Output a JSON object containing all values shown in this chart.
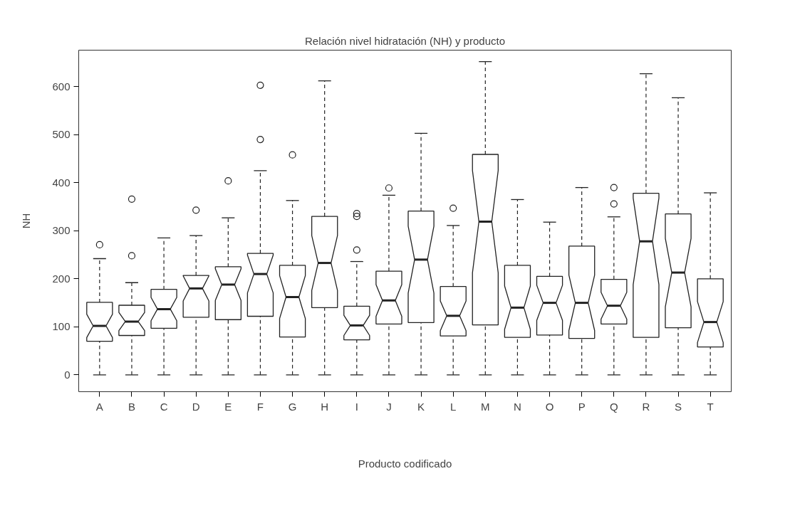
{
  "chart_data": {
    "type": "box",
    "title": "Relación nivel hidratación (NH) y producto",
    "xlabel": "Producto codificado",
    "ylabel": "NH",
    "categories": [
      "A",
      "B",
      "C",
      "D",
      "E",
      "F",
      "G",
      "H",
      "I",
      "J",
      "K",
      "L",
      "M",
      "N",
      "O",
      "P",
      "Q",
      "R",
      "S",
      "T"
    ],
    "ylim": [
      -35,
      676
    ],
    "yticks": [
      0,
      100,
      200,
      300,
      400,
      500,
      600
    ],
    "grid": false,
    "boxes": [
      {
        "low": 0,
        "q1": 70,
        "median": 102,
        "q3": 151,
        "high": 242,
        "outliers": [
          271
        ]
      },
      {
        "low": 0,
        "q1": 82,
        "median": 111,
        "q3": 145,
        "high": 192,
        "outliers": [
          248,
          366
        ]
      },
      {
        "low": 0,
        "q1": 97,
        "median": 137,
        "q3": 178,
        "high": 285
      },
      {
        "low": 0,
        "q1": 120,
        "median": 180,
        "q3": 207,
        "high": 290,
        "outliers": [
          343
        ]
      },
      {
        "low": 0,
        "q1": 115,
        "median": 188,
        "q3": 225,
        "high": 327,
        "outliers": [
          404
        ]
      },
      {
        "low": 0,
        "q1": 122,
        "median": 210,
        "q3": 253,
        "high": 425,
        "outliers": [
          490,
          603
        ]
      },
      {
        "low": 0,
        "q1": 79,
        "median": 162,
        "q3": 228,
        "high": 363,
        "outliers": [
          458
        ]
      },
      {
        "low": 0,
        "q1": 140,
        "median": 233,
        "q3": 330,
        "high": 612
      },
      {
        "low": 0,
        "q1": 73,
        "median": 103,
        "q3": 143,
        "high": 236,
        "outliers": [
          260,
          330,
          336
        ]
      },
      {
        "low": 0,
        "q1": 106,
        "median": 155,
        "q3": 216,
        "high": 374,
        "outliers": [
          389
        ]
      },
      {
        "low": 0,
        "q1": 109,
        "median": 240,
        "q3": 341,
        "high": 503
      },
      {
        "low": 0,
        "q1": 81,
        "median": 123,
        "q3": 184,
        "high": 311,
        "outliers": [
          347
        ]
      },
      {
        "low": 0,
        "q1": 104,
        "median": 319,
        "q3": 459,
        "high": 652
      },
      {
        "low": 0,
        "q1": 78,
        "median": 140,
        "q3": 228,
        "high": 365
      },
      {
        "low": 0,
        "q1": 83,
        "median": 150,
        "q3": 205,
        "high": 318
      },
      {
        "low": 0,
        "q1": 76,
        "median": 150,
        "q3": 268,
        "high": 390
      },
      {
        "low": 0,
        "q1": 106,
        "median": 144,
        "q3": 199,
        "high": 329,
        "outliers": [
          356,
          390
        ]
      },
      {
        "low": 0,
        "q1": 78,
        "median": 278,
        "q3": 378,
        "high": 627
      },
      {
        "low": 0,
        "q1": 98,
        "median": 213,
        "q3": 335,
        "high": 577
      },
      {
        "low": 0,
        "q1": 58,
        "median": 110,
        "q3": 200,
        "high": 379
      }
    ]
  }
}
